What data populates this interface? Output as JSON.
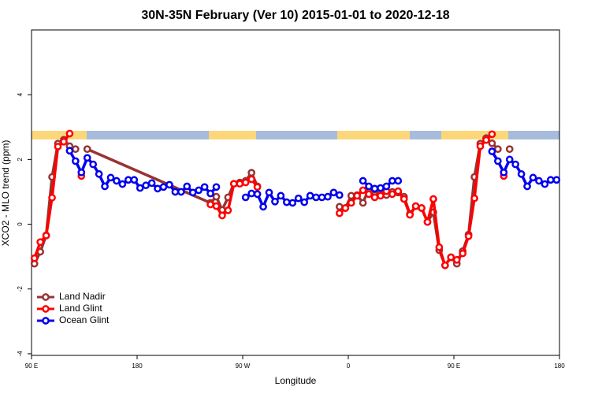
{
  "chart_data": {
    "type": "line",
    "title": "30N-35N February (Ver 10)   2015-01-01 to 2020-12-18",
    "x_label": "Longitude",
    "y_label": "XCO2 - MLO trend (ppm)",
    "xlim": [
      90,
      540
    ],
    "ylim": [
      -4.05,
      6.0
    ],
    "xticks": [
      {
        "value": 90,
        "label": "90 E"
      },
      {
        "value": 180,
        "label": "180"
      },
      {
        "value": 270,
        "label": "90 W"
      },
      {
        "value": 360,
        "label": "0"
      },
      {
        "value": 450,
        "label": "90 E"
      },
      {
        "value": 540,
        "label": "180"
      }
    ],
    "yticks": [
      -4,
      -2,
      0,
      2,
      4
    ],
    "legend": "bottom-left",
    "series": [
      {
        "name": "Land Nadir",
        "color": "#993333",
        "x": [
          92.5,
          97.5,
          102.5,
          107.5,
          112.5,
          117.5,
          122.5,
          127.5,
          132.5,
          137.5,
          242.5,
          247.5,
          252.5,
          257.5,
          262.5,
          267.5,
          272.5,
          277.5,
          282.5,
          287.5,
          352.5,
          357.5,
          362.5,
          367.5,
          372.5,
          377.5,
          382.5,
          387.5,
          392.5,
          397.5,
          402.5,
          407.5,
          412.5,
          417.5,
          422.5,
          427.5,
          432.5,
          437.5,
          442.5,
          447.5,
          452.5,
          457.5,
          462.5,
          467.5,
          472.5,
          477.5,
          482.5,
          487.5,
          492.5,
          497.5
        ],
        "values": [
          -1.22,
          -0.85,
          -0.34,
          1.46,
          2.49,
          2.61,
          2.41,
          2.32,
          null,
          2.32,
          0.66,
          0.85,
          0.44,
          0.83,
          1.25,
          1.29,
          1.34,
          1.59,
          1.17,
          null,
          0.54,
          0.5,
          0.88,
          0.9,
          0.66,
          1.1,
          0.9,
          1.1,
          0.9,
          1.0,
          0.98,
          0.85,
          0.32,
          0.56,
          0.5,
          0.07,
          0.37,
          -0.8,
          -1.27,
          -1.02,
          -1.22,
          -0.83,
          -0.32,
          1.46,
          2.49,
          2.66,
          2.5,
          2.32,
          null,
          2.32
        ]
      },
      {
        "name": "Land Glint",
        "color": "#ff0000",
        "x": [
          92.5,
          97.5,
          102.5,
          107.5,
          112.5,
          117.5,
          122.5,
          127.5,
          132.5,
          137.5,
          242.5,
          247.5,
          252.5,
          257.5,
          262.5,
          267.5,
          272.5,
          277.5,
          282.5,
          287.5,
          352.5,
          357.5,
          362.5,
          367.5,
          372.5,
          377.5,
          382.5,
          387.5,
          392.5,
          397.5,
          402.5,
          407.5,
          412.5,
          417.5,
          422.5,
          427.5,
          432.5,
          437.5,
          442.5,
          447.5,
          452.5,
          457.5,
          462.5,
          467.5,
          472.5,
          477.5,
          482.5,
          487.5,
          492.5
        ],
        "values": [
          -1.05,
          -0.55,
          -0.35,
          0.82,
          2.4,
          2.55,
          2.8,
          null,
          1.49,
          null,
          0.61,
          0.56,
          0.27,
          0.43,
          1.25,
          1.25,
          1.29,
          1.39,
          1.15,
          null,
          0.34,
          0.5,
          0.66,
          0.88,
          1.05,
          0.93,
          0.83,
          0.88,
          1.02,
          0.93,
          1.02,
          0.78,
          0.29,
          0.56,
          0.5,
          0.07,
          0.78,
          -0.71,
          -1.27,
          -1.02,
          -1.1,
          -0.9,
          -0.37,
          0.8,
          2.41,
          2.6,
          2.78,
          null,
          1.49
        ]
      },
      {
        "name": "Ocean Glint",
        "color": "#0000ee",
        "x": [
          122.5,
          127.5,
          132.5,
          137.5,
          142.5,
          147.5,
          152.5,
          157.5,
          162.5,
          167.5,
          172.5,
          177.5,
          182.5,
          187.5,
          192.5,
          197.5,
          202.5,
          207.5,
          212.5,
          217.5,
          222.5,
          227.5,
          232.5,
          237.5,
          242.5,
          247.5,
          252.5,
          272.5,
          277.5,
          282.5,
          287.5,
          292.5,
          297.5,
          302.5,
          307.5,
          312.5,
          317.5,
          322.5,
          327.5,
          332.5,
          337.5,
          342.5,
          347.5,
          352.5,
          357.5,
          372.5,
          377.5,
          382.5,
          387.5,
          392.5,
          397.5,
          402.5,
          407.5,
          482.5,
          487.5,
          492.5,
          497.5,
          502.5,
          507.5,
          512.5,
          517.5,
          522.5,
          527.5,
          532.5,
          537.5
        ],
        "values": [
          2.27,
          1.95,
          1.6,
          2.05,
          1.85,
          1.55,
          1.17,
          1.44,
          1.34,
          1.24,
          1.37,
          1.37,
          1.12,
          1.2,
          1.27,
          1.1,
          1.15,
          1.22,
          1.0,
          1.0,
          1.17,
          0.98,
          1.05,
          1.15,
          0.95,
          1.15,
          null,
          0.83,
          0.95,
          0.93,
          0.54,
          0.98,
          0.7,
          0.88,
          0.68,
          0.66,
          0.8,
          0.68,
          0.88,
          0.83,
          0.83,
          0.85,
          0.98,
          0.9,
          null,
          1.34,
          1.17,
          1.1,
          1.12,
          1.17,
          1.34,
          1.34,
          null,
          2.25,
          1.95,
          1.6,
          2.0,
          1.85,
          1.55,
          1.17,
          1.44,
          1.34,
          1.24,
          1.37,
          1.37
        ]
      }
    ]
  }
}
